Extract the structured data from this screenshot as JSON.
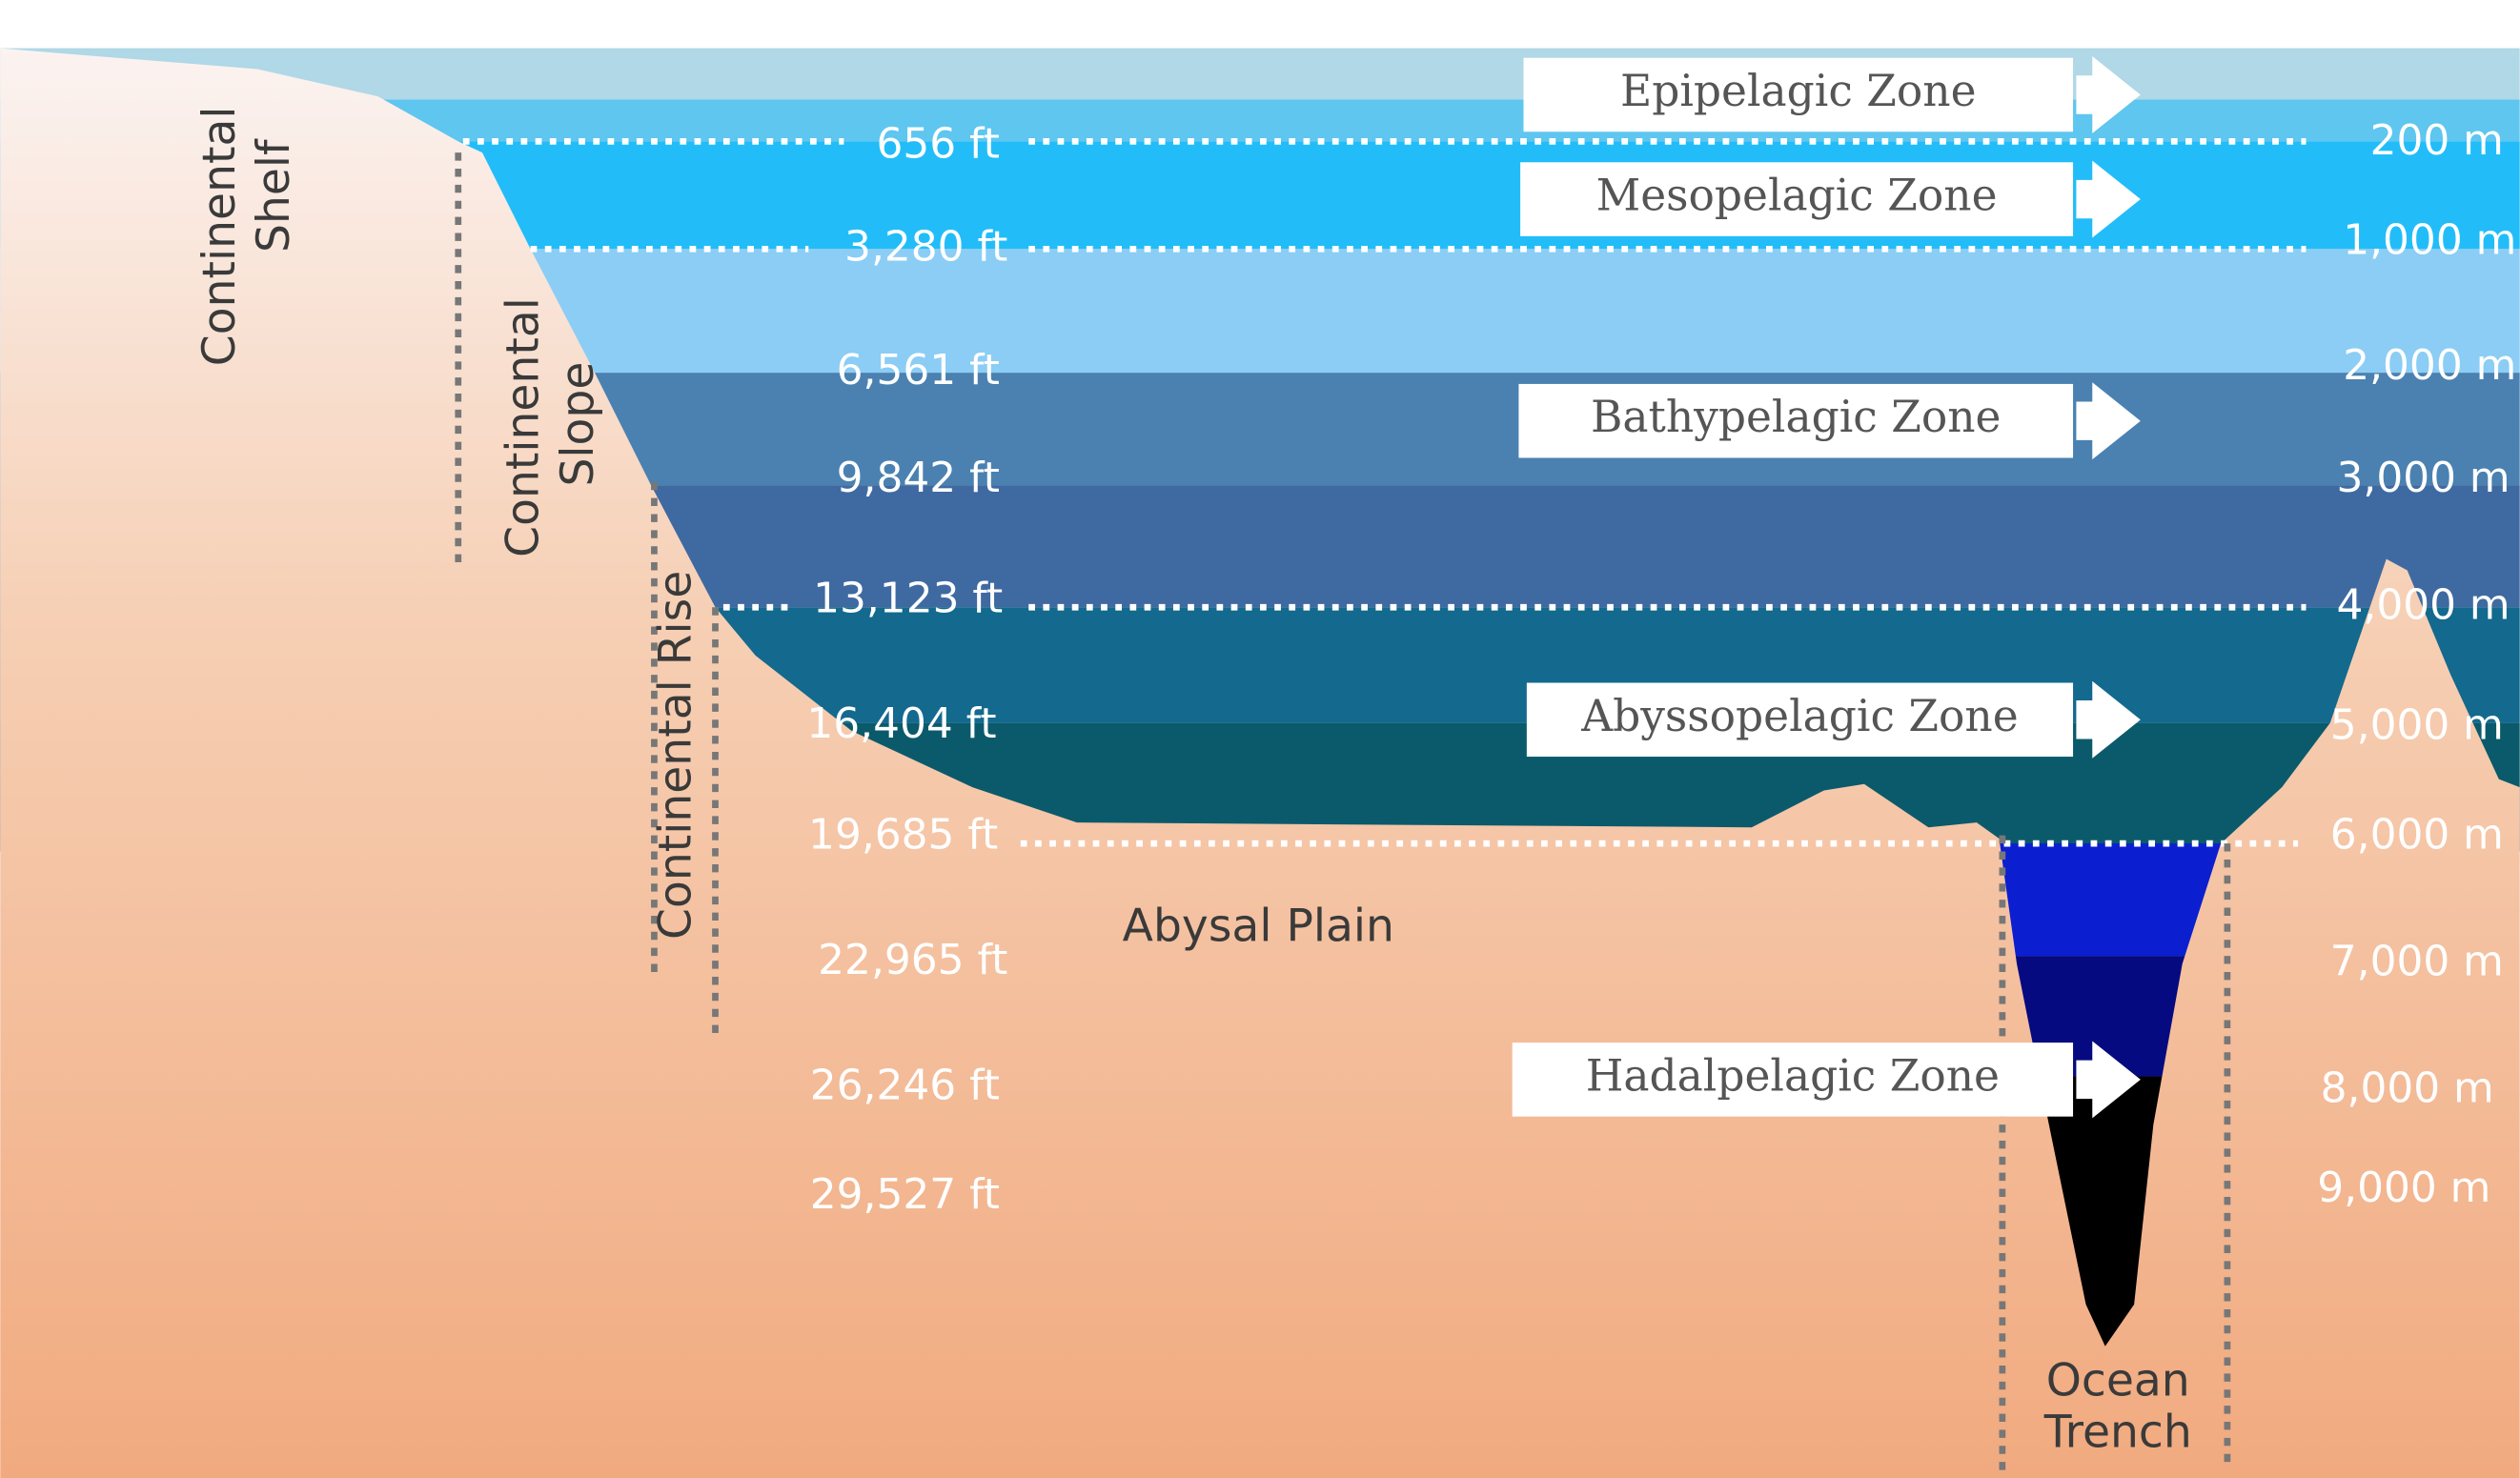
{
  "zones": [
    "Epipelagic Zone",
    "Mesopelagic Zone",
    "Bathypelagic Zone",
    "Abyssopelagic Zone",
    "Hadalpelagic Zone"
  ],
  "depths_ft": [
    "656 ft",
    "3,280 ft",
    "6,561 ft",
    "9,842 ft",
    "13,123 ft",
    "16,404 ft",
    "19,685 ft",
    "22,965 ft",
    "26,246 ft",
    "29,527 ft"
  ],
  "depths_m": [
    "200 m",
    "1,000 m",
    "2,000 m",
    "3,000 m",
    "4,000 m",
    "5,000 m",
    "6,000 m",
    "7,000 m",
    "8,000 m",
    "9,000 m"
  ],
  "landforms": {
    "shelf": [
      "Continental",
      "Shelf"
    ],
    "slope": [
      "Continental",
      "Slope"
    ],
    "rise": "Continental Rise",
    "plain": "Abysal Plain",
    "trench": [
      "Ocean",
      "Trench"
    ]
  }
}
